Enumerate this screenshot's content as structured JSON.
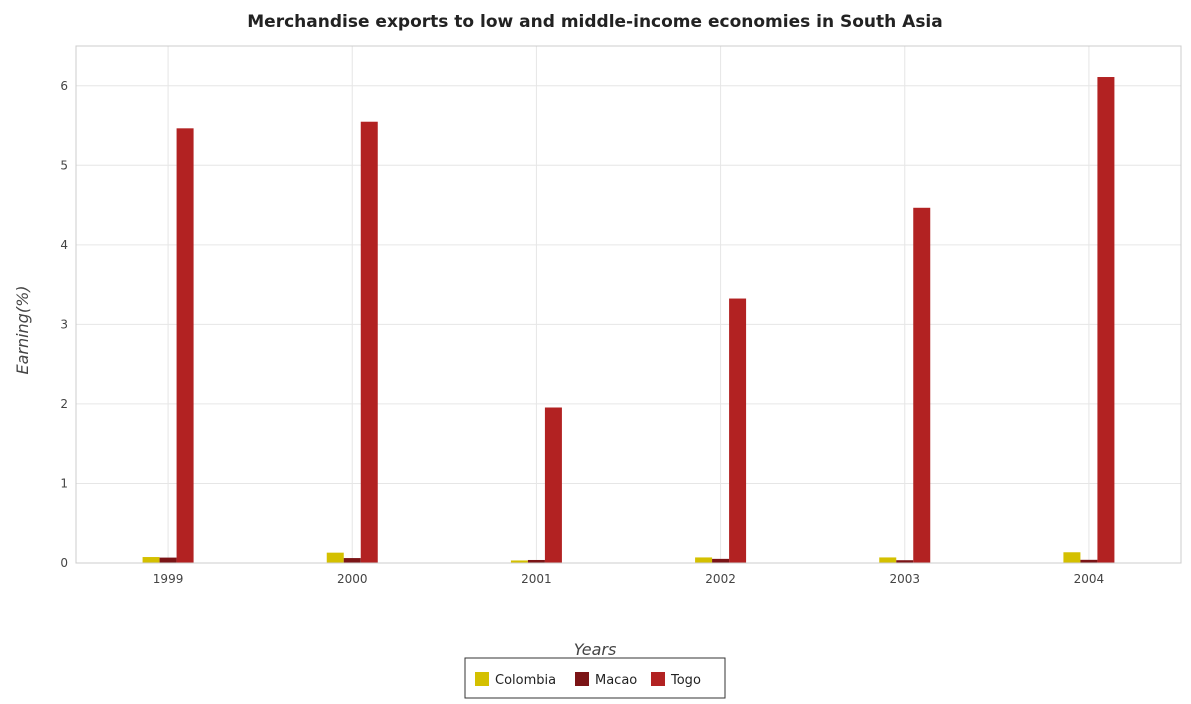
{
  "chart_data": {
    "type": "bar",
    "title": "Merchandise exports to low and middle-income economies in South Asia",
    "xlabel": "Years",
    "ylabel": "Earning(%)",
    "categories": [
      "1999",
      "2000",
      "2001",
      "2002",
      "2003",
      "2004"
    ],
    "series": [
      {
        "name": "Colombia",
        "color": "#d4c000",
        "values": [
          0.075,
          0.13,
          0.032,
          0.07,
          0.07,
          0.135
        ]
      },
      {
        "name": "Macao",
        "color": "#7b1416",
        "values": [
          0.068,
          0.062,
          0.038,
          0.052,
          0.035,
          0.04
        ]
      },
      {
        "name": "Togo",
        "color": "#b22222",
        "values": [
          5.465,
          5.548,
          1.955,
          3.325,
          4.466,
          6.11
        ]
      }
    ],
    "ylim": [
      0,
      6.5
    ],
    "yticks": [
      0,
      1,
      2,
      3,
      4,
      5,
      6
    ],
    "grid": true,
    "legend_position": "bottom-center"
  }
}
